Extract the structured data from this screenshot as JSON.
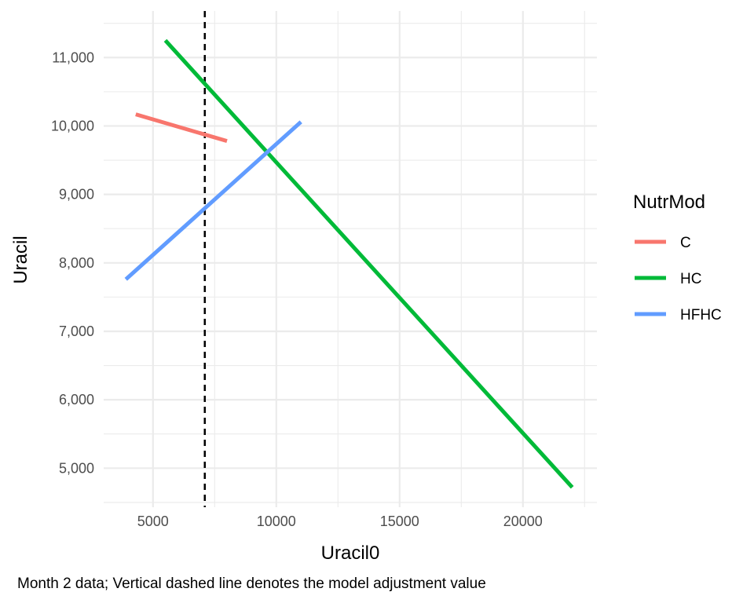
{
  "chart_data": {
    "type": "line",
    "title": "",
    "xlabel": "Uracil0",
    "ylabel": "Uracil",
    "caption": "Month 2 data; Vertical dashed line denotes the model adjustment value",
    "xlim": [
      3000,
      23000
    ],
    "ylim": [
      4430,
      11680
    ],
    "x_ticks": [
      5000,
      10000,
      15000,
      20000
    ],
    "x_tick_labels": [
      "5000",
      "10000",
      "15000",
      "20000"
    ],
    "y_ticks": [
      5000,
      6000,
      7000,
      8000,
      9000,
      10000,
      11000
    ],
    "y_tick_labels": [
      "5,000",
      "6,000",
      "7,000",
      "8,000",
      "9,000",
      "10,000",
      "11,000"
    ],
    "grid": true,
    "legend_title": "NutrMod",
    "legend_position": "right",
    "vline": {
      "x": 7100,
      "style": "dashed",
      "color": "#000000"
    },
    "series": [
      {
        "name": "C",
        "color": "#F8766D",
        "x": [
          4300,
          8000
        ],
        "y": [
          10170,
          9780
        ]
      },
      {
        "name": "HC",
        "color": "#00BA38",
        "x": [
          5500,
          22000
        ],
        "y": [
          11250,
          4720
        ]
      },
      {
        "name": "HFHC",
        "color": "#619CFF",
        "x": [
          3900,
          11000
        ],
        "y": [
          7760,
          10060
        ]
      }
    ]
  }
}
